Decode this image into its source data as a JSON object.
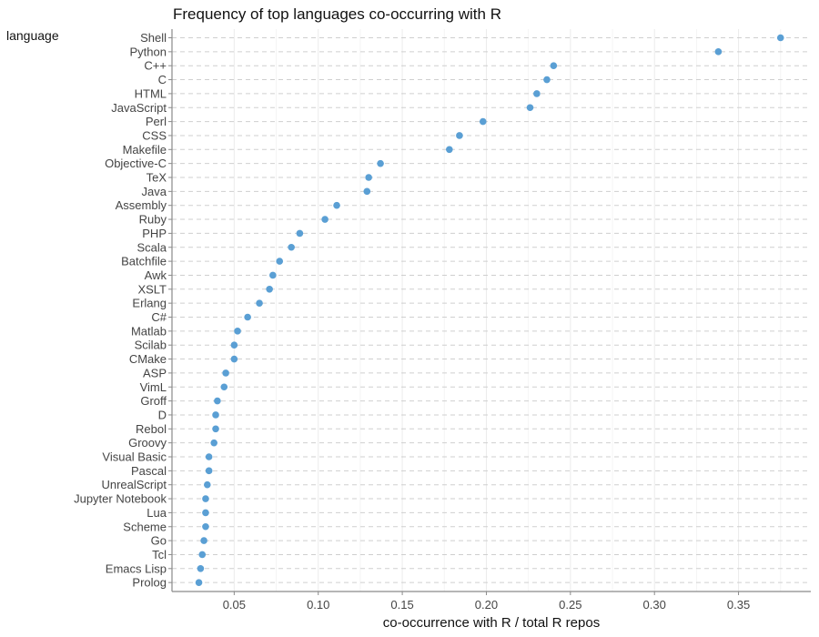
{
  "chart_data": {
    "type": "scatter",
    "title": "Frequency of top languages co-occurring with R",
    "xlabel": "co-occurrence with R / total R repos",
    "ylabel": "language",
    "xlim": [
      0.013,
      0.393
    ],
    "x_ticks": [
      "0.05",
      "0.10",
      "0.15",
      "0.20",
      "0.25",
      "0.30",
      "0.35"
    ],
    "grid": true,
    "legend": "none",
    "point_color": "#5a9fd4",
    "categories": [
      "Shell",
      "Python",
      "C++",
      "C",
      "HTML",
      "JavaScript",
      "Perl",
      "CSS",
      "Makefile",
      "Objective-C",
      "TeX",
      "Java",
      "Assembly",
      "Ruby",
      "PHP",
      "Scala",
      "Batchfile",
      "Awk",
      "XSLT",
      "Erlang",
      "C#",
      "Matlab",
      "Scilab",
      "CMake",
      "ASP",
      "VimL",
      "Groff",
      "D",
      "Rebol",
      "Groovy",
      "Visual Basic",
      "Pascal",
      "UnrealScript",
      "Jupyter Notebook",
      "Lua",
      "Scheme",
      "Go",
      "Tcl",
      "Emacs Lisp",
      "Prolog"
    ],
    "values": [
      0.375,
      0.338,
      0.24,
      0.236,
      0.23,
      0.226,
      0.198,
      0.184,
      0.178,
      0.137,
      0.13,
      0.129,
      0.111,
      0.104,
      0.089,
      0.084,
      0.077,
      0.073,
      0.071,
      0.065,
      0.058,
      0.052,
      0.05,
      0.05,
      0.045,
      0.044,
      0.04,
      0.039,
      0.039,
      0.038,
      0.035,
      0.035,
      0.034,
      0.033,
      0.033,
      0.033,
      0.032,
      0.031,
      0.03,
      0.029
    ]
  }
}
